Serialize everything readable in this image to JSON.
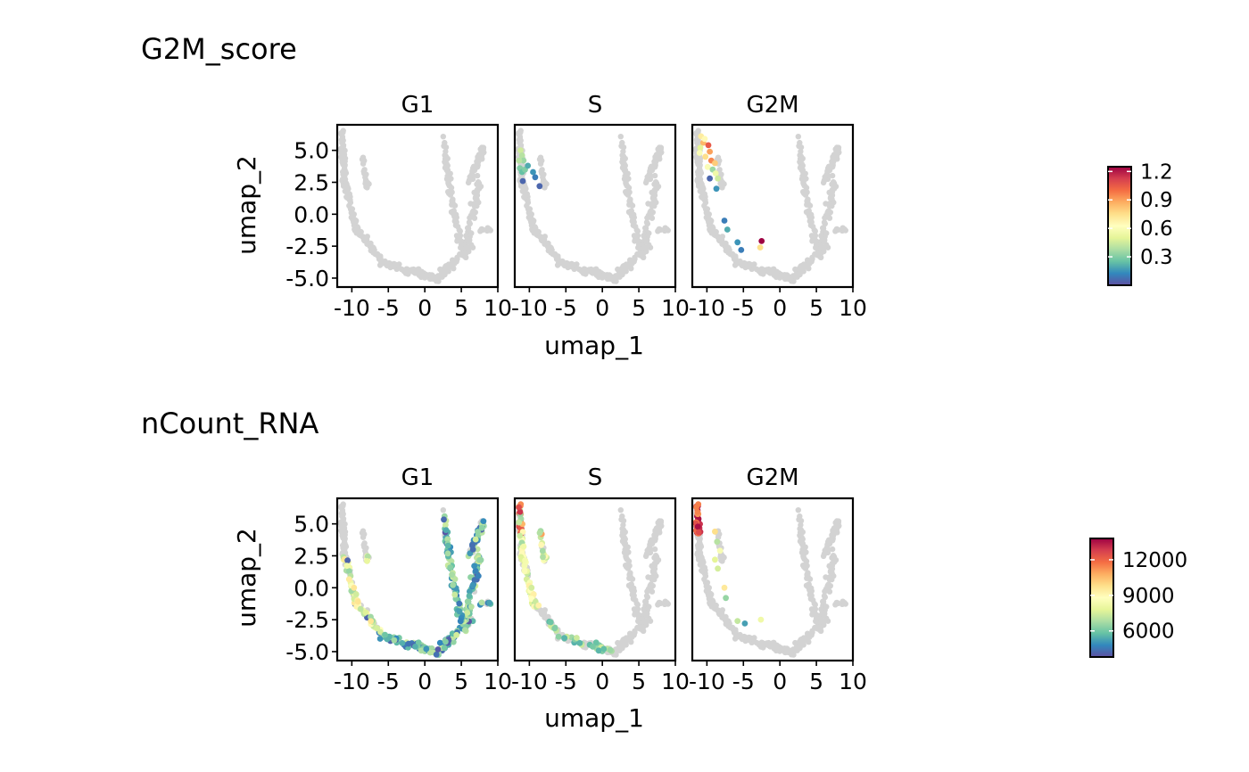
{
  "chart_data": [
    {
      "type": "scatter",
      "title": "G2M_score",
      "facets": [
        "G1",
        "S",
        "G2M"
      ],
      "xlabel": "umap_1",
      "ylabel": "umap_2",
      "xlim": [
        -12,
        10
      ],
      "ylim": [
        -5.7,
        7
      ],
      "x_ticks": [
        -10,
        -5,
        0,
        5,
        10
      ],
      "y_ticks": [
        5.0,
        2.5,
        0.0,
        -2.5,
        -5.0
      ],
      "x_tick_labels": [
        "-10",
        "-5",
        "0",
        "5",
        "10"
      ],
      "y_tick_labels": [
        "5.0",
        "2.5",
        "0.0",
        "-2.5",
        "-5.0"
      ],
      "background_color": "#d3d3d3",
      "colorbar": {
        "min": 0.0,
        "max": 1.25,
        "ticks": [
          0.3,
          0.6,
          0.9,
          1.2
        ],
        "tick_labels": [
          "0.3",
          "0.6",
          "0.9",
          "1.2"
        ],
        "palette": "Spectral"
      },
      "highlighted": {
        "G1": [],
        "S": [
          [
            -11.2,
            5.0,
            0.45
          ],
          [
            -11.0,
            4.6,
            0.4
          ],
          [
            -10.8,
            4.2,
            0.35
          ],
          [
            -11.3,
            3.6,
            0.3
          ],
          [
            -11.0,
            3.3,
            0.25
          ],
          [
            -10.6,
            3.5,
            0.3
          ],
          [
            -10.2,
            3.8,
            0.2
          ],
          [
            -10.9,
            2.6,
            0.05
          ],
          [
            -9.2,
            2.9,
            0.1
          ],
          [
            -8.6,
            2.2,
            0.05
          ],
          [
            -9.5,
            3.3,
            0.15
          ],
          [
            -11.4,
            4.2,
            0.4
          ]
        ],
        "G2M": [
          [
            -10.8,
            6.1,
            0.7
          ],
          [
            -10.5,
            5.6,
            0.85
          ],
          [
            -10.9,
            5.2,
            0.5
          ],
          [
            -9.8,
            5.4,
            1.05
          ],
          [
            -9.6,
            4.9,
            0.9
          ],
          [
            -10.2,
            4.5,
            0.75
          ],
          [
            -9.4,
            4.2,
            0.95
          ],
          [
            -8.9,
            4.0,
            0.8
          ],
          [
            -9.9,
            3.7,
            0.6
          ],
          [
            -9.2,
            3.5,
            0.35
          ],
          [
            -8.8,
            3.2,
            0.55
          ],
          [
            -9.6,
            2.8,
            0.05
          ],
          [
            -8.5,
            2.8,
            0.45
          ],
          [
            -8.7,
            2.0,
            0.15
          ],
          [
            -7.6,
            -0.5,
            0.1
          ],
          [
            -7.2,
            -1.2,
            0.2
          ],
          [
            -5.8,
            -2.2,
            0.15
          ],
          [
            -5.3,
            -2.8,
            0.1
          ],
          [
            -2.5,
            -2.1,
            1.25
          ],
          [
            -2.7,
            -2.6,
            0.75
          ],
          [
            -10.3,
            5.9,
            0.65
          ],
          [
            -11.0,
            4.8,
            0.6
          ]
        ]
      }
    },
    {
      "type": "scatter",
      "title": "nCount_RNA",
      "facets": [
        "G1",
        "S",
        "G2M"
      ],
      "xlabel": "umap_1",
      "ylabel": "umap_2",
      "xlim": [
        -12,
        10
      ],
      "ylim": [
        -5.7,
        7
      ],
      "x_ticks": [
        -10,
        -5,
        0,
        5,
        10
      ],
      "y_ticks": [
        5.0,
        2.5,
        0.0,
        -2.5,
        -5.0
      ],
      "x_tick_labels": [
        "-10",
        "-5",
        "0",
        "5",
        "10"
      ],
      "y_tick_labels": [
        "5.0",
        "2.5",
        "0.0",
        "-2.5",
        "-5.0"
      ],
      "background_color": "#d3d3d3",
      "colorbar": {
        "min": 3800,
        "max": 13800,
        "ticks": [
          6000,
          9000,
          12000
        ],
        "tick_labels": [
          "6000",
          "9000",
          "12000"
        ],
        "palette": "Spectral"
      },
      "highlighted": {
        "G1": "cells in lower arm and right arm, mostly 4000-7000, some 7000-9000, few >10000 in left arm",
        "S": "cells in left arm and bottom, mostly 6000-9000, a few 11000-13000 at top-left",
        "G2M": "cells at top-left mostly 11000-13500, a few 7000-9000 further down"
      }
    }
  ]
}
